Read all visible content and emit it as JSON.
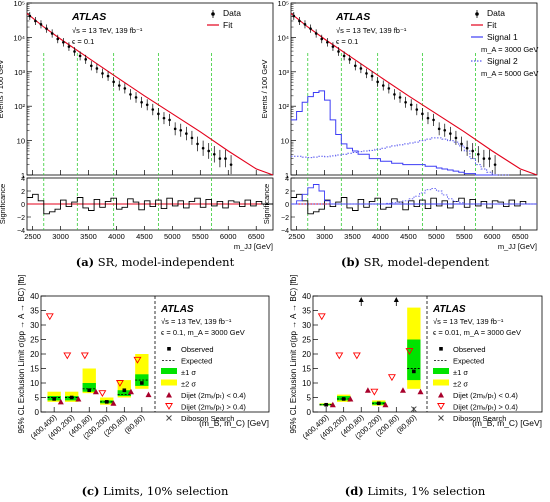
{
  "captions": {
    "a": {
      "tag": "(a)",
      "text": "SR, model-independent"
    },
    "b": {
      "tag": "(b)",
      "text": "SR, model-dependent"
    },
    "c": {
      "tag": "(c)",
      "text": "Limits, 10% selection"
    },
    "d": {
      "tag": "(d)",
      "text": "Limits, 1% selection"
    }
  },
  "colors": {
    "fit": "#e3001b",
    "data": "#000000",
    "signal1": "#3d3df5",
    "signal2": "#5858f0",
    "green_band": "#00e300",
    "yellow_band": "#ffff00",
    "dijet_low": "#a8002b",
    "dijet_high": "#ff0000",
    "vlines": "#33cc33"
  },
  "chart_data": [
    {
      "id": "a",
      "type": "line",
      "atlas_label": "ATLAS",
      "energy_line": "√s = 13 TeV, 139 fb⁻¹",
      "eps_line": "ϵ = 0.1",
      "ylabel": "Events / 100 GeV",
      "yscale": "log",
      "ylim": [
        1,
        100000
      ],
      "ytick_labels": [
        "1",
        "10",
        "10²",
        "10³",
        "10⁴",
        "10⁵"
      ],
      "xlabel": "m_JJ [GeV]",
      "xlim": [
        2400,
        6800
      ],
      "xticks": [
        2500,
        3000,
        3500,
        4000,
        4500,
        5000,
        5500,
        6000,
        6500
      ],
      "vlines": [
        2700,
        3300,
        3950,
        4750,
        5700
      ],
      "legend": [
        {
          "marker": "data",
          "label": "Data"
        },
        {
          "marker": "fit",
          "label": "Fit"
        }
      ],
      "fit_curve": {
        "x": [
          2400,
          2700,
          3000,
          3500,
          4000,
          4500,
          5000,
          5500,
          6000,
          6500,
          6800
        ],
        "y": [
          50000,
          20000,
          9000,
          2500,
          700,
          200,
          60,
          18,
          5,
          1.5,
          1
        ]
      },
      "data_points": {
        "x": [
          2450,
          2550,
          2650,
          2750,
          2850,
          2950,
          3050,
          3150,
          3250,
          3350,
          3450,
          3550,
          3650,
          3750,
          3850,
          3950,
          4050,
          4150,
          4250,
          4350,
          4450,
          4550,
          4650,
          4750,
          4850,
          4950,
          5050,
          5150,
          5250,
          5350,
          5450,
          5550,
          5650,
          5750,
          5850,
          5950,
          6050
        ],
        "y": [
          42000,
          30000,
          24000,
          18000,
          13000,
          9000,
          7200,
          5400,
          3900,
          2900,
          2300,
          1500,
          1250,
          900,
          750,
          510,
          400,
          330,
          220,
          180,
          130,
          110,
          80,
          60,
          45,
          40,
          22,
          20,
          16,
          12,
          8,
          6,
          5,
          4,
          3,
          3,
          2
        ]
      },
      "significance": {
        "ylabel": "Significance",
        "ylim": [
          -4,
          4
        ],
        "ytick_labels": [
          "−4",
          "−2",
          "0",
          "2",
          "4"
        ],
        "values": [
          1,
          1.5,
          0.5,
          -1.5,
          -1.2,
          -0.8,
          0.6,
          -0.4,
          0.3,
          1,
          -0.6,
          -1,
          0.7,
          -0.5,
          0.4,
          0.9,
          -0.8,
          -0.5,
          0.8,
          0.3,
          -0.9,
          0.5,
          -0.4,
          0.6,
          -0.7,
          0.9,
          -0.3,
          0.5,
          -0.6,
          0.4,
          0.9,
          -0.5,
          0.7,
          -0.3,
          0.4,
          -0.6,
          0.5,
          0.3,
          -0.4,
          0.6,
          -0.3,
          0.4,
          0,
          0
        ]
      }
    },
    {
      "id": "b",
      "type": "line",
      "atlas_label": "ATLAS",
      "energy_line": "√s = 13 TeV, 139 fb⁻¹",
      "eps_line": "ϵ = 0.1",
      "ylabel": "Events / 100 GeV",
      "yscale": "log",
      "ylim": [
        1,
        100000
      ],
      "ytick_labels": [
        "1",
        "10",
        "10²",
        "10³",
        "10⁴",
        "10⁵"
      ],
      "xlabel": "m_JJ [GeV]",
      "xlim": [
        2400,
        6800
      ],
      "xticks": [
        2500,
        3000,
        3500,
        4000,
        4500,
        5000,
        5500,
        6000,
        6500
      ],
      "vlines": [
        2700,
        3300,
        3950,
        4750,
        5700
      ],
      "legend": [
        {
          "marker": "data",
          "label": "Data"
        },
        {
          "marker": "fit",
          "label": "Fit"
        },
        {
          "marker": "signal1",
          "label": "Signal 1",
          "sub": "m_A = 3000 GeV"
        },
        {
          "marker": "signal2",
          "label": "Signal 2",
          "sub": "m_A = 5000 GeV"
        }
      ],
      "fit_curve": {
        "x": [
          2400,
          2700,
          3000,
          3500,
          4000,
          4500,
          5000,
          5500,
          6000,
          6500,
          6800
        ],
        "y": [
          50000,
          20000,
          9000,
          2500,
          700,
          200,
          60,
          18,
          5,
          1.5,
          1
        ]
      },
      "data_points": {
        "x": [
          2450,
          2550,
          2650,
          2750,
          2850,
          2950,
          3050,
          3150,
          3250,
          3350,
          3450,
          3550,
          3650,
          3750,
          3850,
          3950,
          4050,
          4150,
          4250,
          4350,
          4450,
          4550,
          4650,
          4750,
          4850,
          4950,
          5050,
          5150,
          5250,
          5350,
          5450,
          5550,
          5650,
          5750,
          5850,
          5950,
          6050
        ],
        "y": [
          42000,
          30000,
          24000,
          18000,
          13000,
          9000,
          7200,
          5400,
          3900,
          2900,
          2300,
          1500,
          1250,
          900,
          750,
          510,
          400,
          330,
          220,
          180,
          130,
          110,
          80,
          60,
          45,
          40,
          22,
          20,
          16,
          12,
          8,
          6,
          5,
          4,
          3,
          3,
          2
        ]
      },
      "signal1": {
        "x": [
          2450,
          2550,
          2650,
          2750,
          2850,
          2950,
          3050,
          3150,
          3250,
          3350,
          3450,
          3550,
          3650,
          3750,
          3850,
          3950,
          4050,
          4150,
          4250,
          4350,
          4450,
          4550,
          4650,
          4750,
          4850,
          4950,
          5050,
          5150,
          5250,
          5350,
          5450,
          5550,
          5650,
          5750,
          5850,
          5950,
          6050
        ],
        "y": [
          40,
          70,
          130,
          190,
          250,
          280,
          150,
          40,
          15,
          8,
          6,
          5,
          4,
          4,
          3,
          3,
          2.5,
          2.5,
          2.2,
          2.2,
          2,
          2,
          2,
          2,
          1.8,
          1.8,
          1.6,
          1.5,
          1.4,
          1.3,
          1.2,
          1.1,
          1.1,
          1,
          1,
          1,
          1
        ]
      },
      "signal2": {
        "x": [
          2450,
          2550,
          2650,
          2750,
          2850,
          2950,
          3050,
          3150,
          3250,
          3350,
          3450,
          3550,
          3650,
          3750,
          3850,
          3950,
          4050,
          4150,
          4250,
          4350,
          4450,
          4550,
          4650,
          4750,
          4850,
          4950,
          5050,
          5150,
          5250,
          5350,
          5450,
          5550,
          5650,
          5750,
          5850,
          5950,
          6050,
          6150,
          6250
        ],
        "y": [
          3.5,
          3.5,
          3.3,
          3.2,
          3.3,
          3.5,
          3.4,
          3.6,
          3.8,
          4,
          4.3,
          4.5,
          4.8,
          5,
          5.2,
          5.6,
          6,
          6.5,
          7,
          7.5,
          8,
          8.5,
          9,
          10,
          11,
          12,
          12,
          11,
          10,
          9,
          7,
          5,
          3,
          2,
          1.5,
          1.2,
          1,
          1,
          1
        ]
      },
      "significance": {
        "ylabel": "Significance",
        "ylim": [
          -4,
          4
        ],
        "ytick_labels": [
          "−4",
          "−2",
          "0",
          "2",
          "4"
        ],
        "values": [
          1,
          1.5,
          0.5,
          -1.5,
          -1.2,
          -0.8,
          0.6,
          -0.4,
          0.3,
          1,
          -0.6,
          -1,
          0.7,
          -0.5,
          0.4,
          0.9,
          -0.8,
          -0.5,
          0.8,
          0.3,
          -0.9,
          0.5,
          -0.4,
          0.6,
          -0.7,
          0.9,
          -0.3,
          0.5,
          -0.6,
          0.4,
          0.9,
          -0.5,
          0.7,
          -0.3,
          0.4,
          -0.6,
          0.5,
          0.3,
          -0.4,
          0.6,
          -0.3,
          0.4,
          0,
          0
        ],
        "signal1_values": [
          0,
          0.5,
          1.5,
          2.5,
          3,
          2,
          0.5,
          0,
          0,
          0,
          0,
          0,
          0,
          0,
          0,
          0,
          0,
          0,
          0,
          0,
          0,
          0,
          0,
          0,
          0,
          0,
          0,
          0,
          0,
          0,
          0,
          0,
          0,
          0,
          0,
          0,
          0,
          0,
          0,
          0,
          0,
          0,
          0,
          0
        ],
        "signal2_values": [
          0,
          0,
          0,
          0,
          0,
          0,
          0,
          0,
          0,
          0,
          0,
          0,
          0,
          0,
          0,
          0,
          0,
          0.1,
          0.2,
          0.3,
          0.5,
          0.8,
          1.2,
          1.7,
          2.2,
          2.4,
          2.0,
          1.4,
          0.8,
          0.4,
          0.2,
          0,
          0,
          0,
          0,
          0,
          0,
          0,
          0,
          0,
          0,
          0,
          0,
          0
        ]
      }
    },
    {
      "id": "c",
      "type": "scatter",
      "atlas_label": "ATLAS",
      "energy_line": "√s = 13 TeV, 139 fb⁻¹",
      "param_line": "ϵ = 0.1, m_A = 3000 GeV",
      "ylabel": "95% CL Exclusion Limit σ(pp → A → BC) [fb]",
      "ylim": [
        0,
        40
      ],
      "yticks": [
        0,
        5,
        10,
        15,
        20,
        25,
        30,
        35,
        40
      ],
      "xlabel": "(m_B, m_C) [GeV]",
      "categories": [
        "(400,400)",
        "(400,200)",
        "(400,80)",
        "(200,200)",
        "(200,80)",
        "(80,80)"
      ],
      "observed": [
        4.5,
        5,
        7.5,
        3.5,
        7.5,
        10
      ],
      "expected": [
        5,
        5,
        8,
        3.5,
        6,
        11
      ],
      "band_1sigma": [
        [
          4,
          5.5
        ],
        [
          4,
          5.5
        ],
        [
          7,
          10
        ],
        [
          3,
          4
        ],
        [
          5.5,
          7.5
        ],
        [
          9,
          13
        ]
      ],
      "band_2sigma": [
        [
          3.5,
          7
        ],
        [
          3.5,
          7
        ],
        [
          6.5,
          15
        ],
        [
          2.5,
          5
        ],
        [
          5,
          11
        ],
        [
          8,
          20
        ]
      ],
      "dijet_low": [
        3.5,
        4.5,
        7,
        3,
        7,
        6
      ],
      "dijet_high": [
        33,
        19.5,
        19.5,
        6.5,
        10,
        18
      ],
      "diboson": [
        null,
        null,
        null,
        null,
        null,
        null
      ],
      "legend": [
        {
          "marker": "observed",
          "label": "Observed"
        },
        {
          "marker": "expected",
          "label": "Expected"
        },
        {
          "marker": "band1",
          "label": "±1 σ"
        },
        {
          "marker": "band2",
          "label": "±2 σ"
        },
        {
          "marker": "dijet_low",
          "label": "Dijet (2mₓ/pₜ) < 0.4)"
        },
        {
          "marker": "dijet_high",
          "label": "Dijet (2mₓ/pₜ) > 0.4)"
        },
        {
          "marker": "diboson",
          "label": "Diboson Search"
        }
      ]
    },
    {
      "id": "d",
      "type": "scatter",
      "atlas_label": "ATLAS",
      "energy_line": "√s = 13 TeV, 139 fb⁻¹",
      "param_line": "ϵ = 0.01, m_A = 3000 GeV",
      "ylabel": "95% CL Exclusion Limit σ(pp → A → BC) [fb]",
      "ylim": [
        0,
        40
      ],
      "yticks": [
        0,
        5,
        10,
        15,
        20,
        25,
        30,
        35,
        40
      ],
      "xlabel": "(m_B, m_C) [GeV]",
      "categories": [
        "(400,400)",
        "(400,200)",
        "(400,80)",
        "(200,200)",
        "(200,80)",
        "(80,80)"
      ],
      "observed": [
        2.5,
        4.5,
        40,
        3,
        40,
        14
      ],
      "expected": [
        2.5,
        4.5,
        null,
        3,
        null,
        15
      ],
      "band_1sigma": [
        [
          2.3,
          2.8
        ],
        [
          4,
          5.5
        ],
        null,
        [
          2.5,
          3.5
        ],
        null,
        [
          11,
          25
        ]
      ],
      "band_2sigma": [
        [
          2.2,
          3
        ],
        [
          3.5,
          6
        ],
        null,
        [
          2.2,
          4
        ],
        null,
        [
          8,
          36
        ]
      ],
      "dijet_low": [
        2.5,
        4.5,
        7.5,
        2.5,
        7.5,
        7
      ],
      "dijet_high": [
        33,
        19.5,
        19.5,
        7,
        12,
        21
      ],
      "diboson": [
        null,
        null,
        null,
        null,
        null,
        1
      ],
      "legend": [
        {
          "marker": "observed",
          "label": "Observed"
        },
        {
          "marker": "expected",
          "label": "Expected"
        },
        {
          "marker": "band1",
          "label": "±1 σ"
        },
        {
          "marker": "band2",
          "label": "±2 σ"
        },
        {
          "marker": "dijet_low",
          "label": "Dijet (2mₓ/pₜ) < 0.4)"
        },
        {
          "marker": "dijet_high",
          "label": "Dijet (2mₓ/pₜ) > 0.4)"
        },
        {
          "marker": "diboson",
          "label": "Diboson Search"
        }
      ]
    }
  ]
}
